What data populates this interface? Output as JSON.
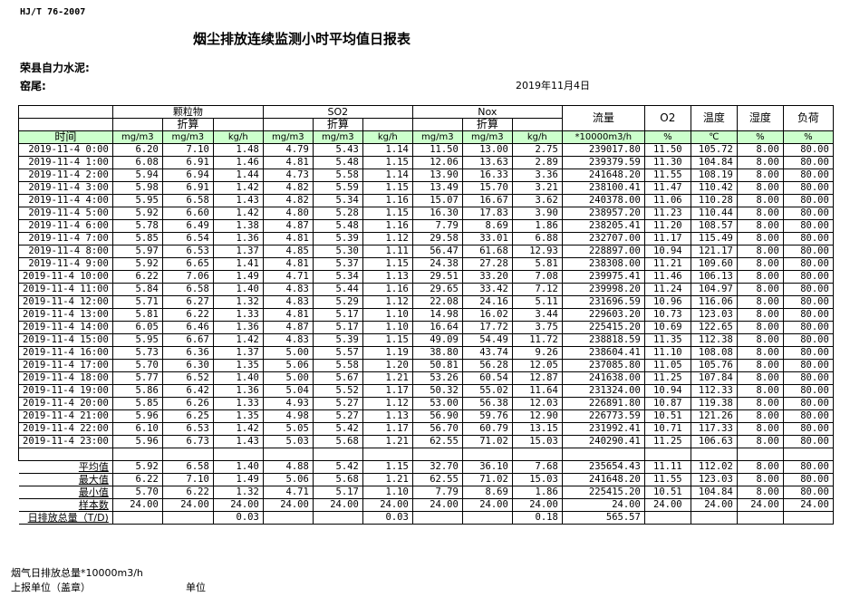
{
  "header": {
    "standard": "HJ/T  76-2007",
    "title": "烟尘排放连续监测小时平均值日报表",
    "company": "荣县自力水泥:",
    "kiln": "窑尾:",
    "date": "2019年11月4日"
  },
  "table": {
    "groups": [
      "颗粒物",
      "SO2",
      "Nox"
    ],
    "converted_label": "折算",
    "single_headers": [
      "流量",
      "O2",
      "温度",
      "湿度",
      "负荷"
    ],
    "time_header": "时间",
    "units": [
      "mg/m3",
      "mg/m3",
      "kg/h",
      "mg/m3",
      "mg/m3",
      "kg/h",
      "mg/m3",
      "mg/m3",
      "kg/h",
      "*10000m3/h",
      "%",
      "℃",
      "%",
      "%"
    ],
    "unit_color": "#ccffcc",
    "rows": [
      [
        "2019-11-4 0:00",
        "6.20",
        "7.10",
        "1.48",
        "4.79",
        "5.43",
        "1.14",
        "11.50",
        "13.00",
        "2.75",
        "239017.80",
        "11.50",
        "105.72",
        "8.00",
        "80.00"
      ],
      [
        "2019-11-4 1:00",
        "6.08",
        "6.91",
        "1.46",
        "4.81",
        "5.48",
        "1.15",
        "12.06",
        "13.63",
        "2.89",
        "239379.59",
        "11.30",
        "104.84",
        "8.00",
        "80.00"
      ],
      [
        "2019-11-4 2:00",
        "5.94",
        "6.94",
        "1.44",
        "4.73",
        "5.58",
        "1.14",
        "13.90",
        "16.33",
        "3.36",
        "241648.20",
        "11.55",
        "108.19",
        "8.00",
        "80.00"
      ],
      [
        "2019-11-4 3:00",
        "5.98",
        "6.91",
        "1.42",
        "4.82",
        "5.59",
        "1.15",
        "13.49",
        "15.70",
        "3.21",
        "238100.41",
        "11.47",
        "110.42",
        "8.00",
        "80.00"
      ],
      [
        "2019-11-4 4:00",
        "5.95",
        "6.58",
        "1.43",
        "4.82",
        "5.34",
        "1.16",
        "15.07",
        "16.67",
        "3.62",
        "240378.00",
        "11.06",
        "110.28",
        "8.00",
        "80.00"
      ],
      [
        "2019-11-4 5:00",
        "5.92",
        "6.60",
        "1.42",
        "4.80",
        "5.28",
        "1.15",
        "16.30",
        "17.83",
        "3.90",
        "238957.20",
        "11.23",
        "110.44",
        "8.00",
        "80.00"
      ],
      [
        "2019-11-4 6:00",
        "5.78",
        "6.49",
        "1.38",
        "4.87",
        "5.48",
        "1.16",
        "7.79",
        "8.69",
        "1.86",
        "238205.41",
        "11.20",
        "108.57",
        "8.00",
        "80.00"
      ],
      [
        "2019-11-4 7:00",
        "5.85",
        "6.54",
        "1.36",
        "4.81",
        "5.39",
        "1.12",
        "29.58",
        "33.01",
        "6.88",
        "232707.00",
        "11.17",
        "115.49",
        "8.00",
        "80.00"
      ],
      [
        "2019-11-4 8:00",
        "5.97",
        "6.53",
        "1.37",
        "4.85",
        "5.30",
        "1.11",
        "56.47",
        "61.68",
        "12.93",
        "228897.00",
        "10.94",
        "121.17",
        "8.00",
        "80.00"
      ],
      [
        "2019-11-4 9:00",
        "5.92",
        "6.65",
        "1.41",
        "4.81",
        "5.37",
        "1.15",
        "24.38",
        "27.28",
        "5.81",
        "238308.00",
        "11.21",
        "109.60",
        "8.00",
        "80.00"
      ],
      [
        "2019-11-4 10:00",
        "6.22",
        "7.06",
        "1.49",
        "4.71",
        "5.34",
        "1.13",
        "29.51",
        "33.20",
        "7.08",
        "239975.41",
        "11.46",
        "106.13",
        "8.00",
        "80.00"
      ],
      [
        "2019-11-4 11:00",
        "5.84",
        "6.58",
        "1.40",
        "4.83",
        "5.44",
        "1.16",
        "29.65",
        "33.42",
        "7.12",
        "239998.20",
        "11.24",
        "104.97",
        "8.00",
        "80.00"
      ],
      [
        "2019-11-4 12:00",
        "5.71",
        "6.27",
        "1.32",
        "4.83",
        "5.29",
        "1.12",
        "22.08",
        "24.16",
        "5.11",
        "231696.59",
        "10.96",
        "116.06",
        "8.00",
        "80.00"
      ],
      [
        "2019-11-4 13:00",
        "5.81",
        "6.22",
        "1.33",
        "4.81",
        "5.17",
        "1.10",
        "14.98",
        "16.02",
        "3.44",
        "229603.20",
        "10.73",
        "123.03",
        "8.00",
        "80.00"
      ],
      [
        "2019-11-4 14:00",
        "6.05",
        "6.46",
        "1.36",
        "4.87",
        "5.17",
        "1.10",
        "16.64",
        "17.72",
        "3.75",
        "225415.20",
        "10.69",
        "122.65",
        "8.00",
        "80.00"
      ],
      [
        "2019-11-4 15:00",
        "5.95",
        "6.67",
        "1.42",
        "4.83",
        "5.39",
        "1.15",
        "49.09",
        "54.49",
        "11.72",
        "238818.59",
        "11.35",
        "112.38",
        "8.00",
        "80.00"
      ],
      [
        "2019-11-4 16:00",
        "5.73",
        "6.36",
        "1.37",
        "5.00",
        "5.57",
        "1.19",
        "38.80",
        "43.74",
        "9.26",
        "238604.41",
        "11.10",
        "108.08",
        "8.00",
        "80.00"
      ],
      [
        "2019-11-4 17:00",
        "5.70",
        "6.30",
        "1.35",
        "5.06",
        "5.58",
        "1.20",
        "50.81",
        "56.28",
        "12.05",
        "237085.80",
        "11.05",
        "105.76",
        "8.00",
        "80.00"
      ],
      [
        "2019-11-4 18:00",
        "5.77",
        "6.52",
        "1.40",
        "5.00",
        "5.67",
        "1.21",
        "53.26",
        "60.54",
        "12.87",
        "241638.00",
        "11.25",
        "107.84",
        "8.00",
        "80.00"
      ],
      [
        "2019-11-4 19:00",
        "5.86",
        "6.42",
        "1.36",
        "5.04",
        "5.52",
        "1.17",
        "50.32",
        "55.02",
        "11.64",
        "231324.00",
        "10.94",
        "112.33",
        "8.00",
        "80.00"
      ],
      [
        "2019-11-4 20:00",
        "5.85",
        "6.26",
        "1.33",
        "4.93",
        "5.27",
        "1.12",
        "53.00",
        "56.38",
        "12.03",
        "226891.80",
        "10.87",
        "119.38",
        "8.00",
        "80.00"
      ],
      [
        "2019-11-4 21:00",
        "5.96",
        "6.25",
        "1.35",
        "4.98",
        "5.27",
        "1.13",
        "56.90",
        "59.76",
        "12.90",
        "226773.59",
        "10.51",
        "121.26",
        "8.00",
        "80.00"
      ],
      [
        "2019-11-4 22:00",
        "6.10",
        "6.53",
        "1.42",
        "5.05",
        "5.42",
        "1.17",
        "56.70",
        "60.79",
        "13.15",
        "231992.41",
        "10.71",
        "117.33",
        "8.00",
        "80.00"
      ],
      [
        "2019-11-4 23:00",
        "5.96",
        "6.73",
        "1.43",
        "5.03",
        "5.68",
        "1.21",
        "62.55",
        "71.02",
        "15.03",
        "240290.41",
        "11.25",
        "106.63",
        "8.00",
        "80.00"
      ]
    ],
    "summary": [
      [
        "平均值",
        "5.92",
        "6.58",
        "1.40",
        "4.88",
        "5.42",
        "1.15",
        "32.70",
        "36.10",
        "7.68",
        "235654.43",
        "11.11",
        "112.02",
        "8.00",
        "80.00"
      ],
      [
        "最大值",
        "6.22",
        "7.10",
        "1.49",
        "5.06",
        "5.68",
        "1.21",
        "62.55",
        "71.02",
        "15.03",
        "241648.20",
        "11.55",
        "123.03",
        "8.00",
        "80.00"
      ],
      [
        "最小值",
        "5.70",
        "6.22",
        "1.32",
        "4.71",
        "5.17",
        "1.10",
        "7.79",
        "8.69",
        "1.86",
        "225415.20",
        "10.51",
        "104.84",
        "8.00",
        "80.00"
      ],
      [
        "样本数",
        "24.00",
        "24.00",
        "24.00",
        "24.00",
        "24.00",
        "24.00",
        "24.00",
        "24.00",
        "24.00",
        "24.00",
        "24.00",
        "24.00",
        "24.00",
        "24.00"
      ],
      [
        "日排放总量（T/D)",
        "",
        "",
        "0.03",
        "",
        "",
        "0.03",
        "",
        "",
        "0.18",
        "565.57",
        "",
        "",
        "",
        ""
      ]
    ]
  },
  "footer": {
    "flue_gas_total": "烟气日排放总量*10000m3/h",
    "reporting_unit": "上报单位（盖章）",
    "unit": "单位"
  }
}
